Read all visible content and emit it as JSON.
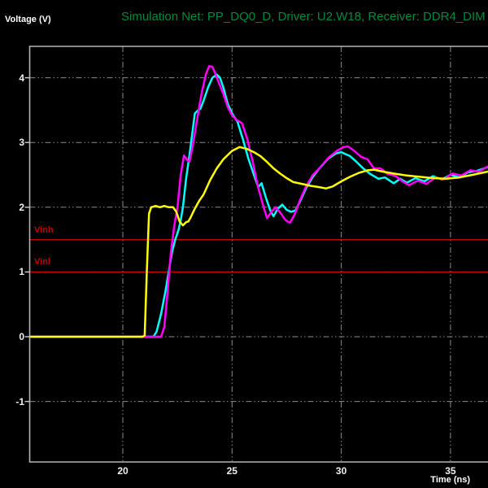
{
  "header": {
    "title": "Simulation Net: PP_DQ0_D, Driver: U2.W18, Receiver: DDR4_DIM"
  },
  "colors": {
    "background": "#000000",
    "title_green": "#008a3c",
    "threshold_red": "#c80000",
    "grid_gray": "#8c8c8c",
    "border_gray": "#b5b5b5",
    "tick_text": "#f0f0f0"
  },
  "chart_data": {
    "type": "line",
    "title": "Simulation Net: PP_DQ0_D, Driver: U2.W18, Receiver: DDR4_DIM",
    "xlabel": "Time (ns)",
    "ylabel": "Voltage (V)",
    "xlim": [
      15.74,
      36.71
    ],
    "ylim": [
      -1.94,
      4.48
    ],
    "x_ticks": [
      20,
      25,
      30,
      35
    ],
    "x_tick_labels": [
      "20",
      "25",
      "30",
      "35"
    ],
    "y_ticks": [
      4,
      3,
      2,
      1,
      0,
      -1
    ],
    "y_tick_labels": [
      "4",
      "3",
      "2",
      "1",
      "0",
      "-1"
    ],
    "grid": true,
    "legend": "none",
    "thresholds": [
      {
        "label": "Vinh",
        "value": 1.5,
        "color": "#c80000"
      },
      {
        "label": "Vinl",
        "value": 1.0,
        "color": "#c80000"
      }
    ],
    "series": [
      {
        "name": "cyan-waveform",
        "color": "#00ffff",
        "points": [
          [
            15.74,
            0
          ],
          [
            21.4,
            0
          ],
          [
            21.55,
            0.08
          ],
          [
            21.75,
            0.35
          ],
          [
            21.95,
            0.7
          ],
          [
            22.1,
            1.0
          ],
          [
            22.25,
            1.3
          ],
          [
            22.4,
            1.5
          ],
          [
            22.55,
            1.65
          ],
          [
            22.65,
            1.8
          ],
          [
            22.75,
            2.0
          ],
          [
            22.9,
            2.45
          ],
          [
            23.05,
            2.8
          ],
          [
            23.2,
            3.2
          ],
          [
            23.3,
            3.45
          ],
          [
            23.45,
            3.5
          ],
          [
            23.55,
            3.52
          ],
          [
            23.7,
            3.65
          ],
          [
            23.9,
            3.85
          ],
          [
            24.1,
            4.0
          ],
          [
            24.3,
            4.05
          ],
          [
            24.45,
            4.0
          ],
          [
            24.6,
            3.85
          ],
          [
            24.8,
            3.6
          ],
          [
            25.0,
            3.45
          ],
          [
            25.25,
            3.32
          ],
          [
            25.5,
            3.05
          ],
          [
            25.75,
            2.75
          ],
          [
            26.0,
            2.5
          ],
          [
            26.2,
            2.31
          ],
          [
            26.35,
            2.37
          ],
          [
            26.55,
            2.15
          ],
          [
            26.75,
            1.95
          ],
          [
            26.9,
            1.86
          ],
          [
            27.1,
            1.98
          ],
          [
            27.3,
            2.04
          ],
          [
            27.5,
            1.96
          ],
          [
            27.7,
            1.93
          ],
          [
            27.9,
            1.95
          ],
          [
            28.1,
            2.08
          ],
          [
            28.4,
            2.3
          ],
          [
            28.7,
            2.47
          ],
          [
            29.0,
            2.6
          ],
          [
            29.4,
            2.75
          ],
          [
            29.75,
            2.83
          ],
          [
            30.0,
            2.85
          ],
          [
            30.4,
            2.79
          ],
          [
            30.7,
            2.7
          ],
          [
            31.0,
            2.6
          ],
          [
            31.3,
            2.52
          ],
          [
            31.7,
            2.44
          ],
          [
            32.0,
            2.46
          ],
          [
            32.4,
            2.37
          ],
          [
            32.7,
            2.44
          ],
          [
            33.0,
            2.38
          ],
          [
            33.4,
            2.45
          ],
          [
            33.8,
            2.4
          ],
          [
            34.2,
            2.48
          ],
          [
            34.6,
            2.43
          ],
          [
            35.0,
            2.5
          ],
          [
            35.4,
            2.46
          ],
          [
            35.8,
            2.54
          ],
          [
            36.2,
            2.56
          ],
          [
            36.71,
            2.62
          ]
        ]
      },
      {
        "name": "magenta-waveform",
        "color": "#ff00ff",
        "points": [
          [
            15.74,
            0
          ],
          [
            21.75,
            0
          ],
          [
            21.9,
            0.15
          ],
          [
            22.05,
            0.7
          ],
          [
            22.2,
            1.3
          ],
          [
            22.35,
            1.7
          ],
          [
            22.5,
            2.0
          ],
          [
            22.65,
            2.5
          ],
          [
            22.8,
            2.8
          ],
          [
            22.95,
            2.73
          ],
          [
            23.05,
            2.7
          ],
          [
            23.2,
            2.95
          ],
          [
            23.4,
            3.35
          ],
          [
            23.6,
            3.75
          ],
          [
            23.8,
            4.05
          ],
          [
            23.95,
            4.18
          ],
          [
            24.1,
            4.17
          ],
          [
            24.25,
            4.05
          ],
          [
            24.4,
            3.92
          ],
          [
            24.6,
            3.75
          ],
          [
            24.8,
            3.55
          ],
          [
            25.0,
            3.42
          ],
          [
            25.2,
            3.35
          ],
          [
            25.45,
            3.3
          ],
          [
            25.7,
            3.05
          ],
          [
            25.95,
            2.7
          ],
          [
            26.2,
            2.3
          ],
          [
            26.45,
            2.0
          ],
          [
            26.6,
            1.83
          ],
          [
            26.8,
            1.93
          ],
          [
            27.0,
            2.0
          ],
          [
            27.2,
            1.92
          ],
          [
            27.45,
            1.8
          ],
          [
            27.65,
            1.76
          ],
          [
            27.85,
            1.88
          ],
          [
            28.1,
            2.1
          ],
          [
            28.4,
            2.33
          ],
          [
            28.7,
            2.5
          ],
          [
            29.0,
            2.6
          ],
          [
            29.4,
            2.76
          ],
          [
            29.8,
            2.87
          ],
          [
            30.1,
            2.93
          ],
          [
            30.3,
            2.94
          ],
          [
            30.6,
            2.87
          ],
          [
            30.9,
            2.78
          ],
          [
            31.2,
            2.74
          ],
          [
            31.5,
            2.6
          ],
          [
            31.8,
            2.6
          ],
          [
            32.1,
            2.52
          ],
          [
            32.5,
            2.48
          ],
          [
            32.8,
            2.4
          ],
          [
            33.1,
            2.34
          ],
          [
            33.5,
            2.41
          ],
          [
            33.9,
            2.36
          ],
          [
            34.3,
            2.46
          ],
          [
            34.7,
            2.43
          ],
          [
            35.1,
            2.52
          ],
          [
            35.5,
            2.49
          ],
          [
            35.9,
            2.57
          ],
          [
            36.3,
            2.55
          ],
          [
            36.71,
            2.63
          ]
        ]
      },
      {
        "name": "yellow-waveform",
        "color": "#ffff00",
        "points": [
          [
            15.74,
            0
          ],
          [
            20.9,
            0
          ],
          [
            21.0,
            0.02
          ],
          [
            21.1,
            1.0
          ],
          [
            21.2,
            1.9
          ],
          [
            21.3,
            2.0
          ],
          [
            21.5,
            2.02
          ],
          [
            21.7,
            2.0
          ],
          [
            21.9,
            2.02
          ],
          [
            22.1,
            2.0
          ],
          [
            22.3,
            2.0
          ],
          [
            22.45,
            1.93
          ],
          [
            22.6,
            1.78
          ],
          [
            22.75,
            1.72
          ],
          [
            22.9,
            1.77
          ],
          [
            23.0,
            1.78
          ],
          [
            23.1,
            1.84
          ],
          [
            23.3,
            1.98
          ],
          [
            23.5,
            2.1
          ],
          [
            23.7,
            2.2
          ],
          [
            24.0,
            2.42
          ],
          [
            24.3,
            2.6
          ],
          [
            24.6,
            2.74
          ],
          [
            25.0,
            2.87
          ],
          [
            25.35,
            2.93
          ],
          [
            25.7,
            2.9
          ],
          [
            26.0,
            2.85
          ],
          [
            26.3,
            2.79
          ],
          [
            26.6,
            2.7
          ],
          [
            26.9,
            2.6
          ],
          [
            27.2,
            2.52
          ],
          [
            27.5,
            2.45
          ],
          [
            27.8,
            2.39
          ],
          [
            28.2,
            2.36
          ],
          [
            28.6,
            2.33
          ],
          [
            29.0,
            2.31
          ],
          [
            29.3,
            2.29
          ],
          [
            29.6,
            2.32
          ],
          [
            30.0,
            2.4
          ],
          [
            30.4,
            2.47
          ],
          [
            30.8,
            2.53
          ],
          [
            31.2,
            2.57
          ],
          [
            31.5,
            2.58
          ],
          [
            31.9,
            2.55
          ],
          [
            32.4,
            2.52
          ],
          [
            33.0,
            2.49
          ],
          [
            33.6,
            2.47
          ],
          [
            34.2,
            2.45
          ],
          [
            34.8,
            2.44
          ],
          [
            35.4,
            2.46
          ],
          [
            36.0,
            2.5
          ],
          [
            36.71,
            2.55
          ]
        ]
      }
    ]
  }
}
